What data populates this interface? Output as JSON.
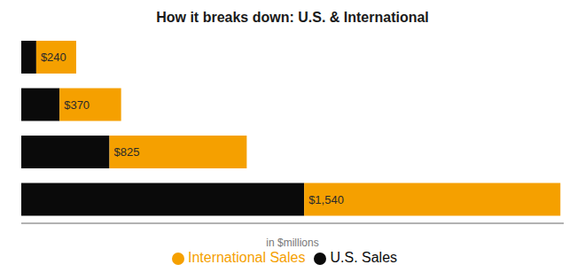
{
  "chart_data": {
    "type": "bar",
    "title": "How it breaks down: U.S. & International",
    "subtitle": "in $millions",
    "orientation": "horizontal",
    "stacked": true,
    "legend": "bottom",
    "tick_labels": false,
    "categories": [
      null,
      null,
      null,
      null
    ],
    "xlim": [
      0,
      3260
    ],
    "series": [
      {
        "name": "U.S. Sales",
        "color": "#0a0a0a",
        "values": [
          90,
          230,
          530,
          1700
        ]
      },
      {
        "name": "International Sales",
        "color": "#F5A000",
        "values": [
          240,
          370,
          825,
          1540
        ],
        "value_labels": [
          "$240",
          "$370",
          "$825",
          "$1,540"
        ],
        "data_labels": true
      }
    ]
  }
}
